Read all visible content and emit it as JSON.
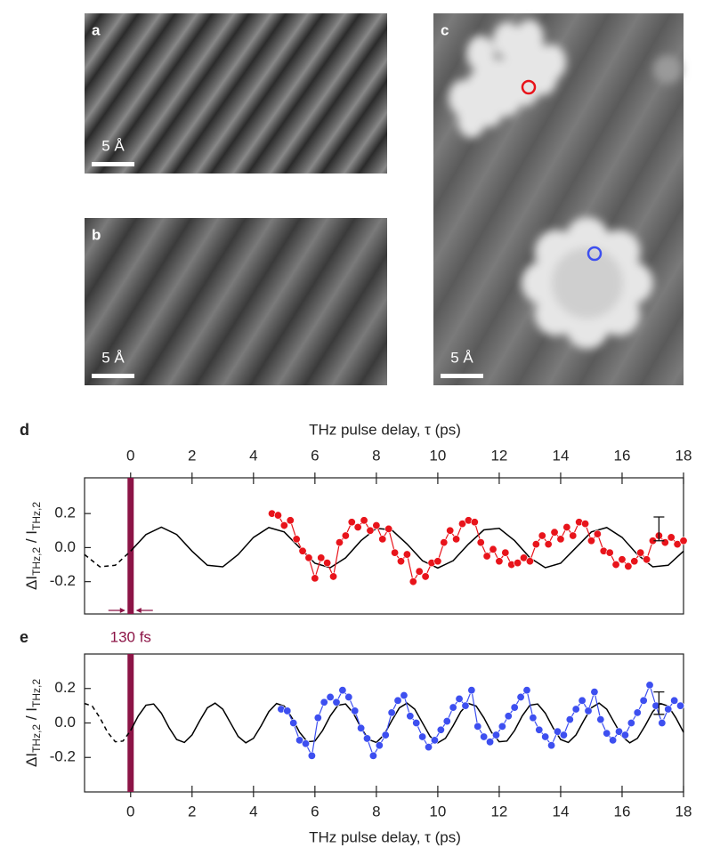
{
  "images": [
    {
      "label": "a",
      "scale_bar": "5 Å"
    },
    {
      "label": "b",
      "scale_bar": "5 Å"
    },
    {
      "label": "c",
      "scale_bar": "5 Å"
    }
  ],
  "chart_data": [
    {
      "type": "line",
      "label": "d",
      "xlabel": "THz pulse delay, τ (ps)",
      "xaxis_side": "top",
      "ylabel": [
        "ΔI",
        "THz,2",
        " / I",
        "THz,2"
      ],
      "xlim": [
        -1.5,
        18
      ],
      "xticks": [
        0,
        2,
        4,
        6,
        8,
        10,
        12,
        14,
        16,
        18
      ],
      "ylim": [
        -0.39,
        0.41
      ],
      "yticks": [
        -0.2,
        {
          "value": 0,
          "label": "0.0"
        },
        0.2
      ],
      "pulse": {
        "x": 0,
        "color": "#8c1446"
      },
      "annotation": "130 fs",
      "error_bar": {
        "x": 17.2,
        "value": 0.11,
        "error": 0.07
      },
      "series": [
        {
          "color": "#000000",
          "dashed": true,
          "x": [
            -1.5,
            -1,
            -0.5,
            0
          ],
          "values": [
            -0.041,
            -0.113,
            -0.104,
            -0.021
          ]
        },
        {
          "color": "#000000",
          "x": [
            0,
            0.5,
            1,
            1.5,
            2,
            2.5,
            3,
            3.5,
            4,
            4.5,
            5,
            5.5,
            6,
            6.5,
            7,
            7.5,
            8,
            8.5,
            9,
            9.5,
            10,
            10.5,
            11,
            11.5,
            12,
            12.5,
            13,
            13.5,
            14,
            14.5,
            15,
            15.5,
            16,
            16.5,
            17,
            17.5,
            18
          ],
          "values": [
            -0.021,
            0.077,
            0.12,
            0.077,
            -0.021,
            -0.104,
            -0.113,
            -0.041,
            0.06,
            0.118,
            0.092,
            0,
            -0.092,
            -0.118,
            -0.06,
            0.041,
            0.113,
            0.104,
            0.021,
            -0.077,
            -0.12,
            -0.077,
            0.021,
            0.104,
            0.113,
            0.041,
            -0.06,
            -0.118,
            -0.092,
            0,
            0.092,
            0.118,
            0.06,
            -0.041,
            -0.113,
            -0.104,
            -0.021
          ]
        },
        {
          "color": "#e8141b",
          "markers": true,
          "x": [
            4.6,
            4.8,
            5.0,
            5.2,
            5.4,
            5.6,
            5.8,
            6.0,
            6.2,
            6.4,
            6.6,
            6.8,
            7.0,
            7.2,
            7.4,
            7.6,
            7.8,
            8.0,
            8.2,
            8.4,
            8.6,
            8.8,
            9.0,
            9.2,
            9.4,
            9.6,
            9.8,
            10.0,
            10.2,
            10.4,
            10.6,
            10.8,
            11.0,
            11.2,
            11.4,
            11.6,
            11.8,
            12.0,
            12.2,
            12.4,
            12.6,
            12.8,
            13.0,
            13.2,
            13.4,
            13.6,
            13.8,
            14.0,
            14.2,
            14.4,
            14.6,
            14.8,
            15.0,
            15.2,
            15.4,
            15.6,
            15.8,
            16.0,
            16.2,
            16.4,
            16.6,
            16.8,
            17.0,
            17.2,
            17.4,
            17.6,
            17.8,
            18.0
          ],
          "values": [
            0.2,
            0.19,
            0.13,
            0.16,
            0.05,
            -0.02,
            -0.06,
            -0.18,
            -0.06,
            -0.09,
            -0.17,
            0.03,
            0.07,
            0.15,
            0.12,
            0.16,
            0.1,
            0.13,
            0.05,
            0.11,
            -0.03,
            -0.08,
            -0.04,
            -0.2,
            -0.14,
            -0.17,
            -0.09,
            -0.08,
            0.03,
            0.1,
            0.05,
            0.14,
            0.16,
            0.15,
            0.03,
            -0.05,
            -0.01,
            -0.08,
            -0.03,
            -0.1,
            -0.09,
            -0.06,
            -0.08,
            0.02,
            0.07,
            0.02,
            0.09,
            0.05,
            0.12,
            0.07,
            0.15,
            0.14,
            0.04,
            0.08,
            -0.02,
            -0.03,
            -0.1,
            -0.07,
            -0.11,
            -0.08,
            -0.03,
            -0.07,
            0.04,
            0.07,
            0.03,
            0.06,
            0.02,
            0.04
          ]
        }
      ]
    },
    {
      "type": "line",
      "label": "e",
      "xlabel": "THz pulse delay, τ (ps)",
      "xaxis_side": "bottom",
      "ylabel": [
        "ΔI",
        "THz,2",
        " / I",
        "THz,2"
      ],
      "xlim": [
        -1.5,
        18
      ],
      "xticks": [
        0,
        2,
        4,
        6,
        8,
        10,
        12,
        14,
        16,
        18
      ],
      "ylim": [
        -0.4,
        0.4
      ],
      "yticks": [
        -0.2,
        {
          "value": 0,
          "label": "0.0"
        },
        0.2
      ],
      "pulse": {
        "x": 0,
        "color": "#8c1446"
      },
      "error_bar": {
        "x": 17.2,
        "value": 0.115,
        "error": 0.065
      },
      "series": [
        {
          "color": "#000000",
          "dashed": true,
          "x": [
            -1.5,
            -1.25,
            -1,
            -0.75,
            -0.5,
            -0.25,
            0
          ],
          "values": [
            0.113,
            0.098,
            0.03,
            -0.054,
            -0.109,
            -0.105,
            -0.044
          ]
        },
        {
          "color": "#000000",
          "x": [
            0,
            0.25,
            0.5,
            0.75,
            1,
            1.25,
            1.5,
            1.75,
            2,
            2.25,
            2.5,
            2.75,
            3,
            3.25,
            3.5,
            3.75,
            4,
            4.25,
            4.5,
            4.75,
            5,
            5.25,
            5.5,
            5.75,
            6,
            6.25,
            6.5,
            6.75,
            7,
            7.25,
            7.5,
            7.75,
            8,
            8.25,
            8.5,
            8.75,
            9,
            9.25,
            9.5,
            9.75,
            10,
            10.25,
            10.5,
            10.75,
            11,
            11.25,
            11.5,
            11.75,
            12,
            12.25,
            12.5,
            12.75,
            13,
            13.25,
            13.5,
            13.75,
            14,
            14.25,
            14.5,
            14.75,
            15,
            15.25,
            15.5,
            15.75,
            16,
            16.25,
            16.5,
            16.75,
            17,
            17.25,
            17.5,
            17.75,
            18
          ],
          "values": [
            -0.044,
            0.041,
            0.103,
            0.11,
            0.057,
            -0.027,
            -0.096,
            -0.113,
            -0.069,
            0.013,
            0.088,
            0.115,
            0.08,
            0.001,
            -0.078,
            -0.115,
            -0.089,
            -0.016,
            0.066,
            0.113,
            0.098,
            0.03,
            -0.054,
            -0.109,
            -0.105,
            -0.044,
            0.041,
            0.103,
            0.11,
            0.057,
            -0.027,
            -0.096,
            -0.113,
            -0.069,
            0.013,
            0.088,
            0.115,
            0.08,
            0.001,
            -0.078,
            -0.115,
            -0.089,
            -0.016,
            0.066,
            0.113,
            0.098,
            0.03,
            -0.054,
            -0.109,
            -0.105,
            -0.044,
            0.041,
            0.103,
            0.11,
            0.057,
            -0.027,
            -0.096,
            -0.113,
            -0.069,
            0.013,
            0.088,
            0.115,
            0.08,
            0.001,
            -0.078,
            -0.115,
            -0.089,
            -0.016,
            0.066,
            0.113,
            0.098,
            0.03,
            -0.054
          ]
        },
        {
          "color": "#3d4ff0",
          "markers": true,
          "x": [
            4.9,
            5.1,
            5.3,
            5.5,
            5.7,
            5.9,
            6.1,
            6.3,
            6.5,
            6.7,
            6.9,
            7.1,
            7.3,
            7.5,
            7.7,
            7.9,
            8.1,
            8.3,
            8.5,
            8.7,
            8.9,
            9.1,
            9.3,
            9.5,
            9.7,
            9.9,
            10.1,
            10.3,
            10.5,
            10.7,
            10.9,
            11.1,
            11.3,
            11.5,
            11.7,
            11.9,
            12.1,
            12.3,
            12.5,
            12.7,
            12.9,
            13.1,
            13.3,
            13.5,
            13.7,
            13.9,
            14.1,
            14.3,
            14.5,
            14.7,
            14.9,
            15.1,
            15.3,
            15.5,
            15.7,
            15.9,
            16.1,
            16.3,
            16.5,
            16.7,
            16.9,
            17.1,
            17.3,
            17.5,
            17.7,
            17.9
          ],
          "values": [
            0.08,
            0.07,
            0,
            -0.1,
            -0.12,
            -0.19,
            0.03,
            0.12,
            0.15,
            0.12,
            0.19,
            0.15,
            0.07,
            -0.03,
            -0.09,
            -0.19,
            -0.13,
            -0.07,
            0.06,
            0.13,
            0.16,
            0.04,
            0,
            -0.08,
            -0.14,
            -0.1,
            -0.04,
            0.01,
            0.09,
            0.14,
            0.1,
            0.19,
            -0.02,
            -0.08,
            -0.11,
            -0.07,
            -0.02,
            0.04,
            0.09,
            0.15,
            0.19,
            0.03,
            -0.04,
            -0.08,
            -0.13,
            -0.05,
            -0.07,
            0.02,
            0.08,
            0.13,
            0.07,
            0.18,
            0.02,
            -0.06,
            -0.1,
            -0.05,
            -0.07,
            0,
            0.06,
            0.13,
            0.22,
            0.1,
            0,
            0.08,
            0.13,
            0.1
          ]
        }
      ]
    }
  ]
}
